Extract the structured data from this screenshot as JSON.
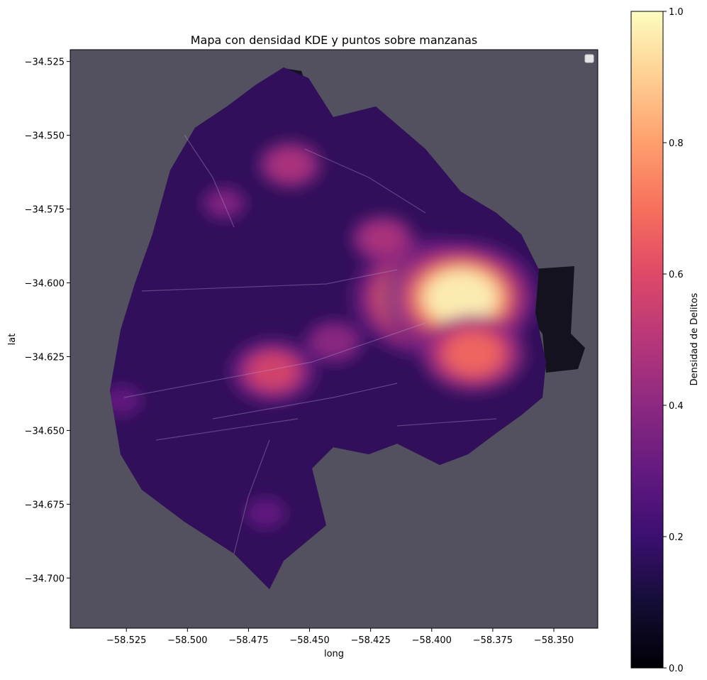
{
  "chart_data": {
    "type": "heatmap",
    "title": "Mapa con densidad KDE y puntos sobre manzanas",
    "xlabel": "long",
    "ylabel": "lat",
    "xlim": [
      -58.548,
      -58.332
    ],
    "ylim": [
      -34.717,
      -34.521
    ],
    "x_ticks": [
      {
        "value": -58.525,
        "label": "−58.525"
      },
      {
        "value": -58.5,
        "label": "−58.500"
      },
      {
        "value": -58.475,
        "label": "−58.475"
      },
      {
        "value": -58.45,
        "label": "−58.450"
      },
      {
        "value": -58.425,
        "label": "−58.425"
      },
      {
        "value": -58.4,
        "label": "−58.400"
      },
      {
        "value": -58.375,
        "label": "−58.375"
      },
      {
        "value": -58.35,
        "label": "−58.350"
      }
    ],
    "y_ticks": [
      {
        "value": -34.525,
        "label": "−34.525"
      },
      {
        "value": -34.55,
        "label": "−34.550"
      },
      {
        "value": -34.575,
        "label": "−34.575"
      },
      {
        "value": -34.6,
        "label": "−34.600"
      },
      {
        "value": -34.625,
        "label": "−34.625"
      },
      {
        "value": -34.65,
        "label": "−34.650"
      },
      {
        "value": -34.675,
        "label": "−34.675"
      },
      {
        "value": -34.7,
        "label": "−34.700"
      }
    ],
    "colorbar": {
      "label": "Densidad de Delitos",
      "range": [
        0,
        1
      ],
      "colormap": "magma",
      "ticks": [
        {
          "value": 0.0,
          "label": "0.0"
        },
        {
          "value": 0.2,
          "label": "0.2"
        },
        {
          "value": 0.4,
          "label": "0.4"
        },
        {
          "value": 0.6,
          "label": "0.6"
        },
        {
          "value": 0.8,
          "label": "0.8"
        },
        {
          "value": 1.0,
          "label": "1.0"
        }
      ]
    },
    "grid": false,
    "legend": "top-right",
    "background_color": "#53515f",
    "density_hotspots": [
      {
        "long": -58.4,
        "lat": -34.605,
        "density": 1.0
      },
      {
        "long": -58.388,
        "lat": -34.605,
        "density": 0.95
      },
      {
        "long": -58.383,
        "lat": -34.624,
        "density": 0.7
      },
      {
        "long": -58.465,
        "lat": -34.63,
        "density": 0.55
      },
      {
        "long": -58.458,
        "lat": -34.56,
        "density": 0.45
      },
      {
        "long": -58.485,
        "lat": -34.573,
        "density": 0.35
      },
      {
        "long": -58.527,
        "lat": -34.64,
        "density": 0.3
      },
      {
        "long": -58.468,
        "lat": -34.678,
        "density": 0.3
      },
      {
        "long": -58.42,
        "lat": -34.585,
        "density": 0.45
      },
      {
        "long": -58.44,
        "lat": -34.62,
        "density": 0.4
      }
    ]
  }
}
